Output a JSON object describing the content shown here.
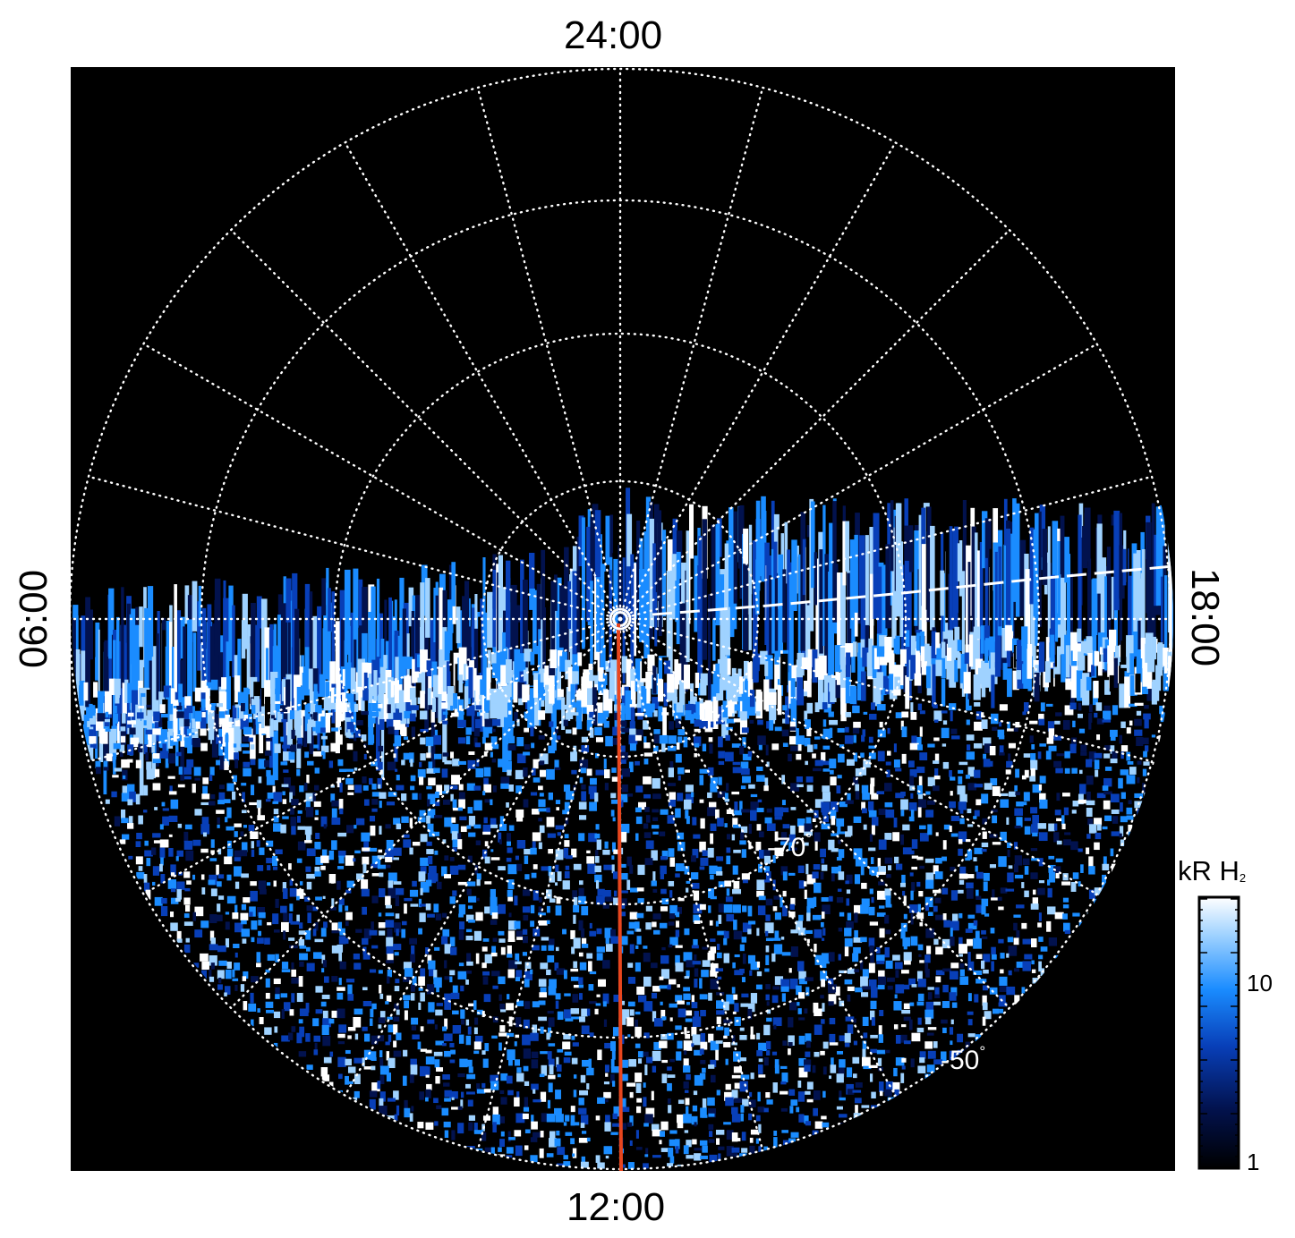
{
  "labels": {
    "top": "24:00",
    "bottom": "12:00",
    "left": "06:00",
    "right": "18:00"
  },
  "annotations": {
    "lat_inner": "-70",
    "lat_outer": "-50",
    "degree": "°"
  },
  "colorbar": {
    "unit": "kR H",
    "unit_subscript": "2",
    "tick_max": "10",
    "tick_min": "1",
    "colors": [
      "#000000",
      "#02124e",
      "#083fb8",
      "#1a8cff",
      "#9fd2ff",
      "#ffffff"
    ]
  },
  "plot": {
    "background": "#000000",
    "meridian_color": "#e8461e",
    "grid_color": "#ffffff"
  }
}
